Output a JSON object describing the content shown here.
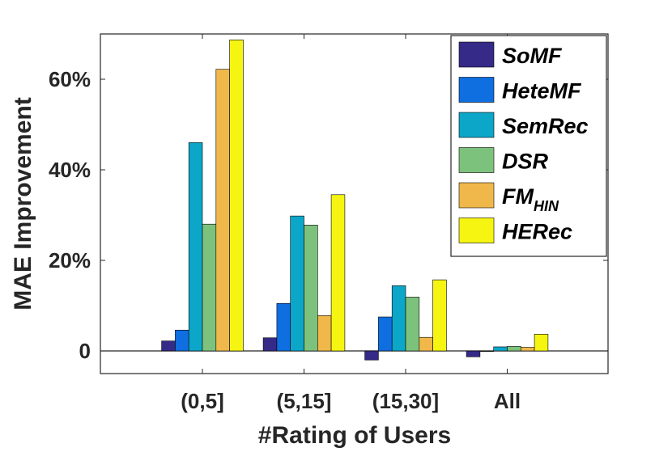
{
  "chart_data": {
    "type": "bar",
    "title": "",
    "xlabel": "#Rating of Users",
    "ylabel": "MAE Improvement",
    "categories": [
      "(0,5]",
      "(5,15]",
      "(15,30]",
      "All"
    ],
    "ylim": [
      -0.05,
      0.7
    ],
    "yticks": [
      0,
      0.2,
      0.4,
      0.6
    ],
    "ytick_labels": [
      "0",
      "20%",
      "40%",
      "60%"
    ],
    "legend_position": "top-right",
    "series": [
      {
        "name": "SoMF",
        "label_main": "SoMF",
        "label_sub": "",
        "color": "#352a87",
        "values": [
          0.022,
          0.029,
          -0.02,
          -0.013
        ]
      },
      {
        "name": "HeteMF",
        "label_main": "HeteMF",
        "label_sub": "",
        "color": "#0f6ee0",
        "values": [
          0.046,
          0.105,
          0.075,
          0.0
        ]
      },
      {
        "name": "SemRec",
        "label_main": "SemRec",
        "label_sub": "",
        "color": "#0ca6c8",
        "values": [
          0.46,
          0.298,
          0.144,
          0.009
        ]
      },
      {
        "name": "DSR",
        "label_main": "DSR",
        "label_sub": "",
        "color": "#7dc27c",
        "values": [
          0.28,
          0.278,
          0.119,
          0.01
        ]
      },
      {
        "name": "FM_HIN",
        "label_main": "FM",
        "label_sub": "HIN",
        "color": "#f0b84a",
        "values": [
          0.622,
          0.078,
          0.03,
          0.008
        ]
      },
      {
        "name": "HERec",
        "label_main": "HERec",
        "label_sub": "",
        "color": "#f5f511",
        "values": [
          0.687,
          0.345,
          0.157,
          0.037
        ]
      }
    ]
  }
}
